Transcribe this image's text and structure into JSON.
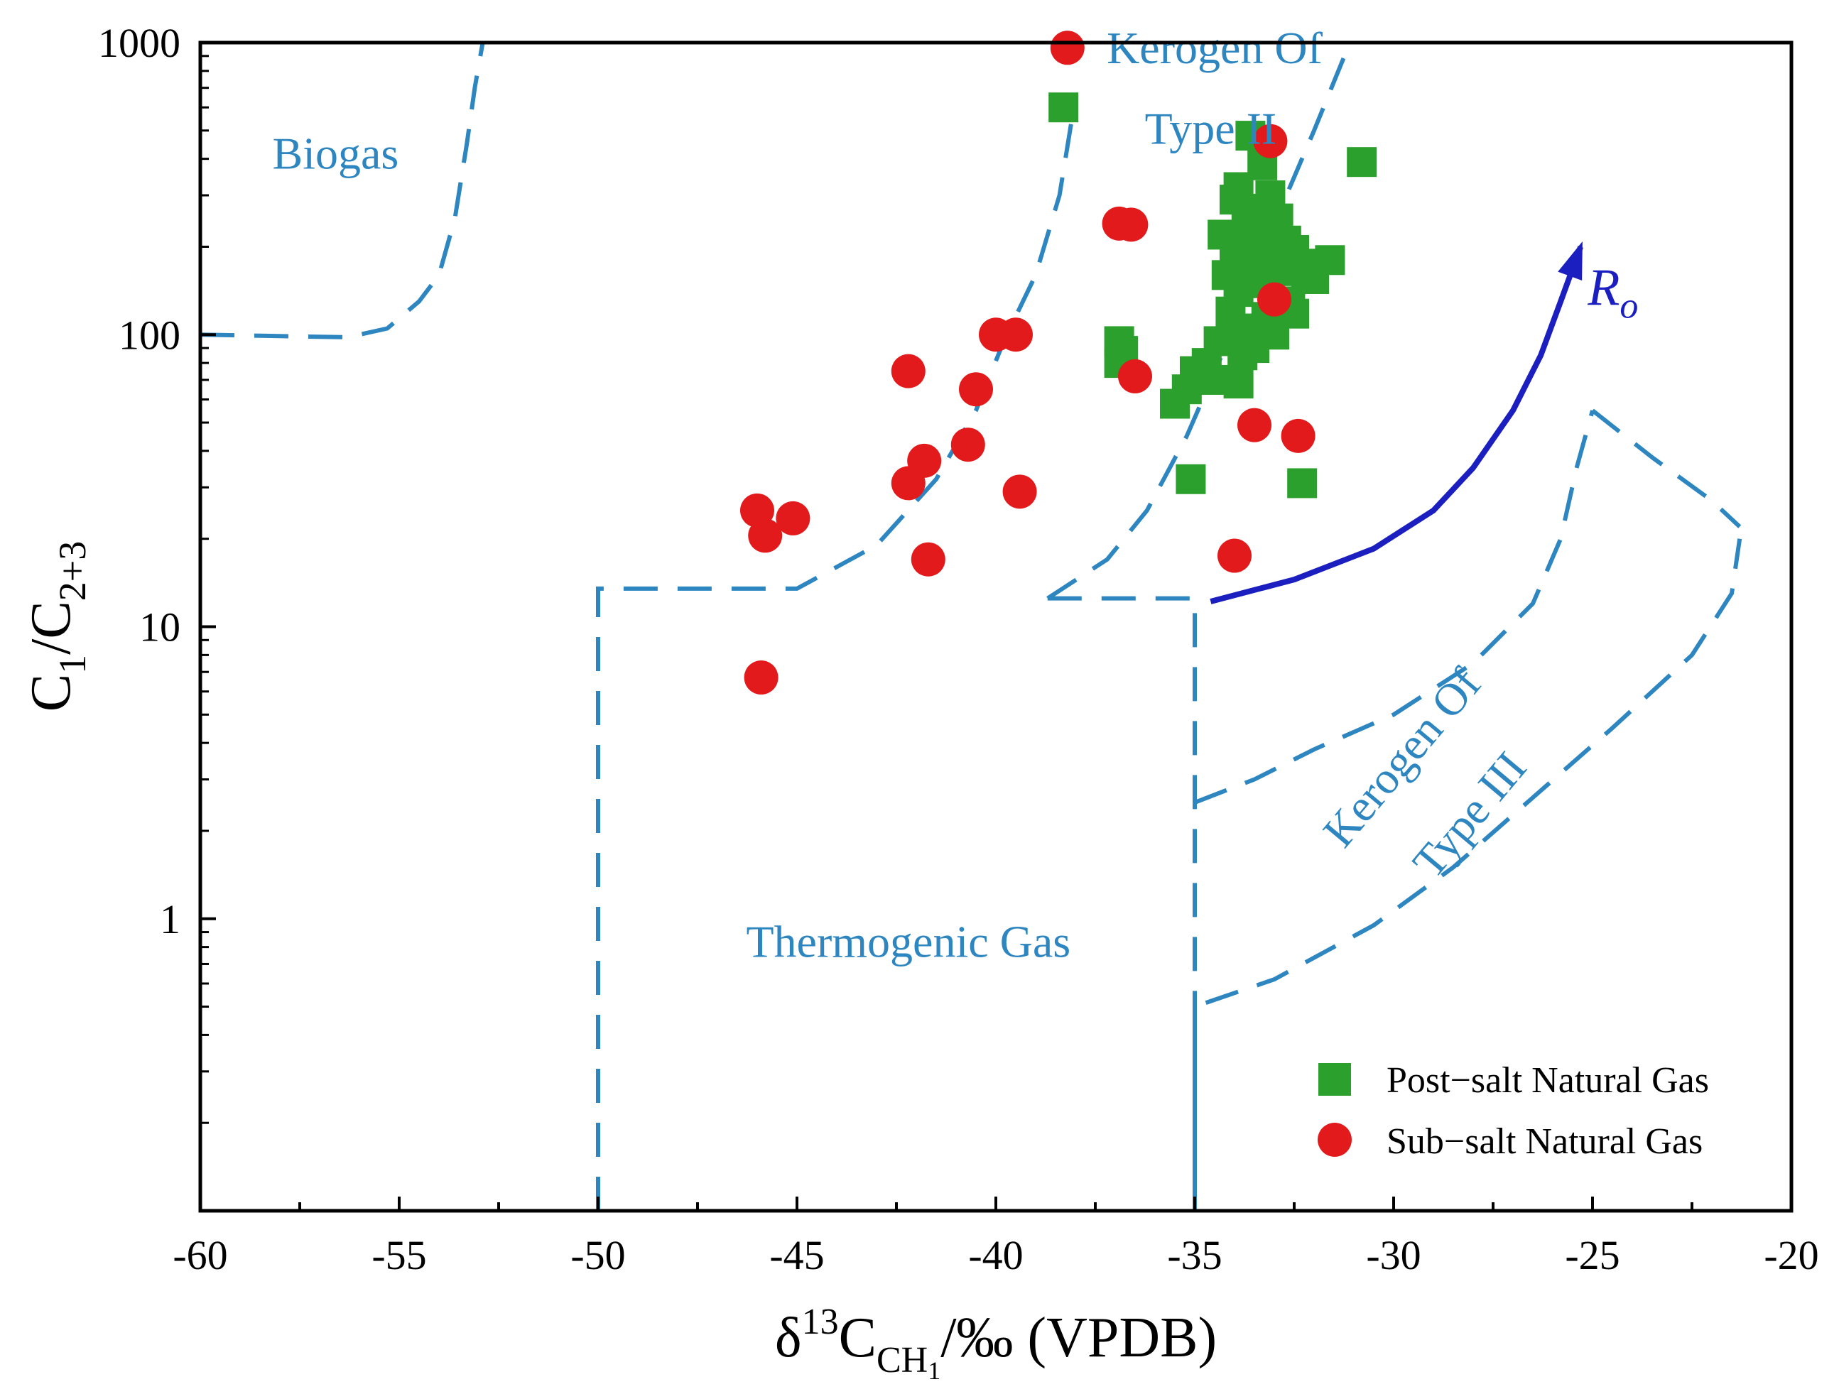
{
  "chart_data": {
    "type": "scatter",
    "title": "",
    "xlabel": "δ13CCH1/‰ (VPDB)",
    "xlabel_parts": {
      "base": "δ",
      "sup": "13",
      "c": "C",
      "sub": "CH",
      "subsub": "1",
      "unit": "/‰  (VPDB)"
    },
    "ylabel": "C1/C2+3",
    "ylabel_parts": {
      "c1": "C",
      "sub1": "1",
      "slash": "/C",
      "sub2": "2+3"
    },
    "xlim": [
      -60,
      -20
    ],
    "ylim": [
      0.1,
      1000
    ],
    "yscale": "log",
    "x_ticks": [
      -60,
      -55,
      -50,
      -45,
      -40,
      -35,
      -30,
      -25,
      -20
    ],
    "x_tick_labels": [
      "-60",
      "-55",
      "-50",
      "-45",
      "-40",
      "-35",
      "-30",
      "-25",
      "-20"
    ],
    "y_ticks": [
      1,
      10,
      100,
      1000
    ],
    "y_tick_labels": [
      "1",
      "10",
      "100",
      "1000"
    ],
    "legend_position": "bottom-right",
    "series": [
      {
        "name": "Post−salt Natural Gas",
        "marker": "square",
        "color": "#2ca02c",
        "points": [
          [
            -38.3,
            600
          ],
          [
            -33.6,
            480
          ],
          [
            -33.3,
            380
          ],
          [
            -30.8,
            390
          ],
          [
            -33.9,
            320
          ],
          [
            -34.0,
            290
          ],
          [
            -33.5,
            270
          ],
          [
            -33.1,
            300
          ],
          [
            -32.9,
            250
          ],
          [
            -33.7,
            240
          ],
          [
            -33.2,
            230
          ],
          [
            -34.3,
            220
          ],
          [
            -32.7,
            210
          ],
          [
            -33.4,
            205
          ],
          [
            -34.0,
            200
          ],
          [
            -32.5,
            195
          ],
          [
            -33.8,
            190
          ],
          [
            -33.0,
            185
          ],
          [
            -31.6,
            180
          ],
          [
            -32.3,
            175
          ],
          [
            -33.6,
            170
          ],
          [
            -34.2,
            160
          ],
          [
            -32.8,
            165
          ],
          [
            -32.0,
            155
          ],
          [
            -33.4,
            150
          ],
          [
            -33.9,
            140
          ],
          [
            -32.6,
            130
          ],
          [
            -34.1,
            120
          ],
          [
            -33.2,
            115
          ],
          [
            -32.5,
            118
          ],
          [
            -33.7,
            105
          ],
          [
            -33.0,
            100
          ],
          [
            -34.4,
            95
          ],
          [
            -33.5,
            90
          ],
          [
            -33.8,
            85
          ],
          [
            -34.7,
            80
          ],
          [
            -35.0,
            75
          ],
          [
            -34.5,
            70
          ],
          [
            -35.2,
            65
          ],
          [
            -35.5,
            58
          ],
          [
            -33.9,
            68
          ],
          [
            -36.9,
            95
          ],
          [
            -36.8,
            88
          ],
          [
            -36.9,
            80
          ],
          [
            -35.1,
            32
          ],
          [
            -32.3,
            31
          ],
          [
            -33.0,
            110
          ],
          [
            -32.2,
            160
          ]
        ]
      },
      {
        "name": "Sub−salt Natural Gas",
        "marker": "circle",
        "color": "#e31a1c",
        "points": [
          [
            -38.2,
            960
          ],
          [
            -33.1,
            460
          ],
          [
            -36.9,
            240
          ],
          [
            -36.6,
            238
          ],
          [
            -33.0,
            132
          ],
          [
            -40.0,
            100
          ],
          [
            -39.5,
            100
          ],
          [
            -42.2,
            75
          ],
          [
            -40.5,
            65
          ],
          [
            -36.5,
            72
          ],
          [
            -33.5,
            49
          ],
          [
            -32.4,
            45
          ],
          [
            -40.7,
            42
          ],
          [
            -41.8,
            37
          ],
          [
            -42.2,
            31
          ],
          [
            -39.4,
            29
          ],
          [
            -46.0,
            25
          ],
          [
            -45.1,
            23.5
          ],
          [
            -45.8,
            20.5
          ],
          [
            -41.7,
            17
          ],
          [
            -34.0,
            17.5
          ],
          [
            -45.9,
            6.7
          ]
        ]
      }
    ],
    "boundaries": [
      {
        "name": "biogas-boundary",
        "points": [
          [
            -60,
            100
          ],
          [
            -56.3,
            98
          ],
          [
            -55.3,
            105
          ],
          [
            -54.5,
            130
          ],
          [
            -54.0,
            160
          ],
          [
            -53.6,
            250
          ],
          [
            -53.3,
            450
          ],
          [
            -53.1,
            700
          ],
          [
            -52.9,
            1000
          ]
        ]
      },
      {
        "name": "kerogen-ii-outer-boundary",
        "points": [
          [
            -50,
            0.1
          ],
          [
            -50,
            13.5
          ],
          [
            -45.0,
            13.5
          ],
          [
            -43.0,
            19
          ],
          [
            -41.5,
            32
          ],
          [
            -40.5,
            55
          ],
          [
            -39.8,
            95
          ],
          [
            -39.0,
            160
          ],
          [
            -38.4,
            300
          ],
          [
            -38.0,
            650
          ]
        ]
      },
      {
        "name": "kerogen-ii-inner-boundary",
        "points": [
          [
            -38.7,
            12.5
          ],
          [
            -37.2,
            17
          ],
          [
            -36.2,
            25
          ],
          [
            -35.2,
            45
          ],
          [
            -34.4,
            80
          ],
          [
            -33.7,
            140
          ],
          [
            -33.0,
            240
          ],
          [
            -32.0,
            500
          ],
          [
            -31.1,
            1000
          ]
        ]
      },
      {
        "name": "thermogenic-inner-boundary",
        "points": [
          [
            -38.7,
            12.5
          ],
          [
            -35,
            12.5
          ],
          [
            -35,
            0.1
          ]
        ]
      },
      {
        "name": "kerogen-iii-upper-boundary",
        "points": [
          [
            -35,
            2.5
          ],
          [
            -33.5,
            3.0
          ],
          [
            -32.0,
            3.8
          ],
          [
            -30.0,
            5.0
          ],
          [
            -28.0,
            7.5
          ],
          [
            -26.5,
            12
          ],
          [
            -25.8,
            20
          ],
          [
            -25.4,
            35
          ],
          [
            -25.0,
            55
          ]
        ]
      },
      {
        "name": "kerogen-iii-right-boundary",
        "points": [
          [
            -25.0,
            55
          ],
          [
            -23.5,
            38
          ],
          [
            -22.0,
            27
          ],
          [
            -21.3,
            22
          ]
        ]
      },
      {
        "name": "kerogen-iii-lower-boundary",
        "points": [
          [
            -35,
            0.1
          ],
          [
            -35,
            0.5
          ],
          [
            -33.0,
            0.62
          ],
          [
            -30.5,
            0.95
          ],
          [
            -28.5,
            1.5
          ],
          [
            -26.5,
            2.6
          ],
          [
            -24.5,
            4.5
          ],
          [
            -22.5,
            8
          ],
          [
            -21.5,
            13
          ],
          [
            -21.3,
            20
          ]
        ]
      }
    ],
    "maturity_trend": {
      "label": "R",
      "label_sub": "o",
      "points": [
        [
          -34.6,
          12.2
        ],
        [
          -32.5,
          14.5
        ],
        [
          -30.5,
          18.5
        ],
        [
          -29.0,
          25
        ],
        [
          -28.0,
          35
        ],
        [
          -27.0,
          55
        ],
        [
          -26.3,
          85
        ],
        [
          -25.8,
          130
        ],
        [
          -25.3,
          200
        ]
      ]
    },
    "annotations": [
      {
        "text": "Biogas",
        "x": -56.6,
        "y": 370
      },
      {
        "text": "Kerogen  Of",
        "x": -34.5,
        "y": 850
      },
      {
        "text": "Type II",
        "x": -34.6,
        "y": 450
      },
      {
        "text": "Thermogenic Gas",
        "x": -42.2,
        "y": 0.74
      },
      {
        "text": "Kerogen  Of",
        "x": -29.5,
        "y": 3.3,
        "rotation": -50
      },
      {
        "text": "Type III",
        "x": -27.8,
        "y": 2.1,
        "rotation": -50
      }
    ]
  }
}
